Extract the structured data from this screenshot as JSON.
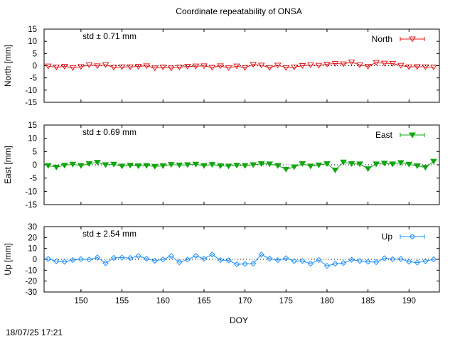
{
  "timestamp": "18/07/25 17:21",
  "chart_data": {
    "type": "line",
    "title": "Coordinate repeatability of ONSA",
    "xlabel": "DOY",
    "xlim": [
      145.5,
      193.7
    ],
    "xticks": [
      150,
      155,
      160,
      165,
      170,
      175,
      180,
      185,
      190
    ],
    "panels": [
      {
        "name": "North",
        "ylabel": "North [mm]",
        "ylim": [
          -15,
          15
        ],
        "yticks": [
          15,
          10,
          5,
          0,
          -5,
          -10,
          -15
        ],
        "std_label": "std ± 0.71 mm",
        "color": "#e31a1c",
        "marker": "triangle-down-open",
        "legend": "North",
        "x": [
          146,
          147,
          148,
          149,
          150,
          151,
          152,
          153,
          154,
          155,
          156,
          157,
          158,
          159,
          160,
          161,
          162,
          163,
          164,
          165,
          166,
          167,
          168,
          169,
          170,
          171,
          172,
          173,
          174,
          175,
          176,
          177,
          178,
          179,
          180,
          181,
          182,
          183,
          184,
          185,
          186,
          187,
          188,
          189,
          190,
          191,
          192,
          193
        ],
        "values": [
          -0.2,
          -0.6,
          -0.3,
          -0.8,
          -0.4,
          0.3,
          -0.1,
          0.4,
          -0.7,
          -0.5,
          -0.5,
          -0.3,
          -0.1,
          -1.0,
          -0.6,
          -1.0,
          -0.6,
          -0.3,
          -0.2,
          -0.1,
          -0.7,
          -0.1,
          -0.9,
          -0.2,
          -0.8,
          0.5,
          0.2,
          -0.8,
          0.2,
          -0.8,
          -0.6,
          0.0,
          0.3,
          0.1,
          0.6,
          0.9,
          0.7,
          1.5,
          0.3,
          -0.3,
          1.3,
          1.0,
          0.9,
          0.1,
          -0.5,
          -0.4,
          -0.5,
          -0.6
        ]
      },
      {
        "name": "East",
        "ylabel": "East [mm]",
        "ylim": [
          -15,
          15
        ],
        "yticks": [
          15,
          10,
          5,
          0,
          -5,
          -10,
          -15
        ],
        "std_label": "std ± 0.69 mm",
        "color": "#11a611",
        "marker": "triangle-down-filled",
        "legend": "East",
        "x": [
          146,
          147,
          148,
          149,
          150,
          151,
          152,
          153,
          154,
          155,
          156,
          157,
          158,
          159,
          160,
          161,
          162,
          163,
          164,
          165,
          166,
          167,
          168,
          169,
          170,
          171,
          172,
          173,
          174,
          175,
          176,
          177,
          178,
          179,
          180,
          181,
          182,
          183,
          184,
          185,
          186,
          187,
          188,
          189,
          190,
          191,
          192,
          193
        ],
        "values": [
          -0.3,
          -0.9,
          -0.2,
          0.2,
          -0.3,
          0.4,
          0.9,
          0.0,
          0.2,
          -0.5,
          -0.2,
          -0.4,
          -0.3,
          -0.6,
          -0.4,
          0.1,
          -0.1,
          0.0,
          0.2,
          -0.3,
          0.1,
          -0.4,
          -0.5,
          -0.2,
          -0.3,
          0.0,
          0.4,
          0.3,
          -0.3,
          -1.7,
          -0.8,
          0.4,
          -0.5,
          -0.1,
          0.4,
          -2.0,
          1.0,
          0.4,
          0.3,
          -1.5,
          0.3,
          0.6,
          0.3,
          0.8,
          0.2,
          -0.4,
          -1.0,
          1.3
        ]
      },
      {
        "name": "Up",
        "ylabel": "Up [mm]",
        "ylim": [
          -30,
          30
        ],
        "yticks": [
          30,
          20,
          10,
          0,
          -10,
          -20,
          -30
        ],
        "std_label": "std ± 2.54 mm",
        "color": "#1e90ff",
        "marker": "diamond-open",
        "legend": "Up",
        "x": [
          146,
          147,
          148,
          149,
          150,
          151,
          152,
          153,
          154,
          155,
          156,
          157,
          158,
          159,
          160,
          161,
          162,
          163,
          164,
          165,
          166,
          167,
          168,
          169,
          170,
          171,
          172,
          173,
          174,
          175,
          176,
          177,
          178,
          179,
          180,
          181,
          182,
          183,
          184,
          185,
          186,
          187,
          188,
          189,
          190,
          191,
          192,
          193
        ],
        "values": [
          0.3,
          -1.7,
          -2.2,
          -0.7,
          0.2,
          -0.2,
          1.7,
          -3.5,
          1.3,
          1.6,
          1.2,
          3.0,
          0.6,
          -1.3,
          -0.1,
          3.0,
          -2.7,
          -0.2,
          3.2,
          0.6,
          4.4,
          -0.7,
          -0.9,
          -4.6,
          -4.2,
          -3.9,
          4.4,
          0.6,
          -0.8,
          1.0,
          -1.6,
          -1.5,
          -4.0,
          -0.6,
          -6.0,
          -4.1,
          -3.4,
          -0.4,
          -1.5,
          -2.2,
          -2.6,
          0.9,
          0.1,
          0.3,
          -2.2,
          -3.0,
          -1.7,
          0.0
        ]
      }
    ]
  }
}
